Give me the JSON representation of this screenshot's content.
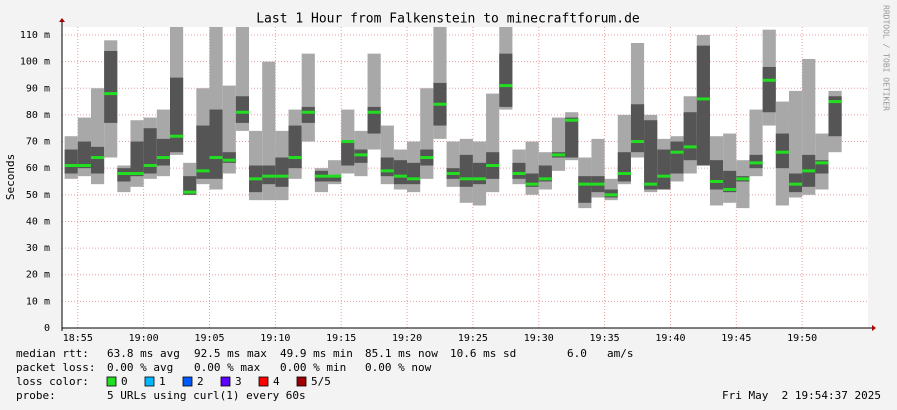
{
  "chart_data": {
    "type": "smoke",
    "title": "Last 1 Hour from Falkenstein to minecraftforum.de",
    "y_label": "Seconds",
    "side_label": "RRDTOOL / TOBI OETIKER",
    "x": [
      1134,
      1135,
      1136,
      1137,
      1138,
      1139,
      1140,
      1141,
      1142,
      1143,
      1144,
      1145,
      1146,
      1147,
      1148,
      1149,
      1150,
      1151,
      1152,
      1153,
      1154,
      1155,
      1156,
      1157,
      1158,
      1159,
      1160,
      1161,
      1162,
      1163,
      1164,
      1165,
      1166,
      1167,
      1168,
      1169,
      1170,
      1171,
      1172,
      1173,
      1174,
      1175,
      1176,
      1177,
      1178,
      1179,
      1180,
      1181,
      1182,
      1183,
      1184,
      1185,
      1186,
      1187,
      1188,
      1189,
      1190,
      1191,
      1192
    ],
    "median": [
      61,
      61,
      64,
      88,
      58,
      58,
      61,
      64,
      72,
      51,
      59,
      64,
      63,
      81,
      56,
      57,
      57,
      64,
      81,
      57,
      57,
      70,
      65,
      81,
      59,
      57,
      56,
      64,
      84,
      58,
      56,
      56,
      61,
      91,
      58,
      54,
      56,
      65,
      78,
      54,
      54,
      50,
      58,
      70,
      54,
      57,
      66,
      68,
      86,
      55,
      52,
      56,
      62,
      93,
      66,
      54,
      59,
      62,
      85
    ],
    "min": [
      56,
      57,
      54,
      64,
      51,
      53,
      56,
      57,
      65,
      50,
      54,
      52,
      58,
      74,
      48,
      48,
      48,
      56,
      70,
      51,
      54,
      58,
      57,
      67,
      54,
      52,
      51,
      56,
      71,
      53,
      47,
      46,
      51,
      82,
      54,
      50,
      52,
      59,
      63,
      45,
      49,
      48,
      54,
      64,
      51,
      54,
      55,
      58,
      72,
      46,
      47,
      45,
      57,
      76,
      46,
      49,
      50,
      52,
      66
    ],
    "max": [
      72,
      79,
      90,
      108,
      61,
      78,
      79,
      82,
      113,
      62,
      90,
      113,
      91,
      113,
      74,
      100,
      74,
      82,
      103,
      60,
      63,
      82,
      74,
      103,
      76,
      67,
      70,
      90,
      113,
      70,
      71,
      70,
      88,
      113,
      67,
      70,
      66,
      79,
      81,
      64,
      71,
      56,
      80,
      107,
      80,
      71,
      72,
      87,
      110,
      72,
      73,
      63,
      82,
      112,
      85,
      89,
      101,
      73,
      89
    ],
    "q_low": [
      58,
      60,
      58,
      77,
      55,
      57,
      58,
      61,
      66,
      50,
      56,
      56,
      62,
      77,
      51,
      54,
      53,
      60,
      77,
      55,
      55,
      61,
      62,
      73,
      57,
      54,
      54,
      61,
      76,
      56,
      53,
      54,
      56,
      83,
      56,
      53,
      55,
      64,
      64,
      47,
      51,
      49,
      55,
      66,
      52,
      52,
      58,
      63,
      61,
      52,
      51,
      55,
      60,
      81,
      60,
      51,
      53,
      58,
      72
    ],
    "q_high": [
      67,
      70,
      68,
      104,
      60,
      70,
      75,
      71,
      94,
      57,
      76,
      82,
      66,
      87,
      61,
      61,
      64,
      76,
      83,
      59,
      57,
      70,
      67,
      83,
      64,
      63,
      62,
      67,
      92,
      60,
      65,
      62,
      66,
      103,
      62,
      58,
      61,
      66,
      79,
      57,
      57,
      52,
      66,
      84,
      78,
      67,
      70,
      81,
      106,
      63,
      59,
      57,
      65,
      98,
      73,
      58,
      65,
      63,
      87
    ],
    "median_color": "#22dd22",
    "smoke_color": "#a8a8a8",
    "band_color": "#555555",
    "grid_color": "#e8a0a0",
    "xlim": [
      1133.8,
      1195
    ],
    "ylim": [
      0,
      113
    ],
    "xticks": [
      {
        "value": 1135,
        "label": "18:55"
      },
      {
        "value": 1140,
        "label": "19:00"
      },
      {
        "value": 1145,
        "label": "19:05"
      },
      {
        "value": 1150,
        "label": "19:10"
      },
      {
        "value": 1155,
        "label": "19:15"
      },
      {
        "value": 1160,
        "label": "19:20"
      },
      {
        "value": 1165,
        "label": "19:25"
      },
      {
        "value": 1170,
        "label": "19:30"
      },
      {
        "value": 1175,
        "label": "19:35"
      },
      {
        "value": 1180,
        "label": "19:40"
      },
      {
        "value": 1185,
        "label": "19:45"
      },
      {
        "value": 1190,
        "label": "19:50"
      }
    ],
    "yticks": [
      0,
      {
        "value": 10,
        "label": "10 m"
      },
      {
        "value": 20,
        "label": "20 m"
      },
      {
        "value": 30,
        "label": "30 m"
      },
      {
        "value": 40,
        "label": "40 m"
      },
      {
        "value": 50,
        "label": "50 m"
      },
      {
        "value": 60,
        "label": "60 m"
      },
      {
        "value": 70,
        "label": "70 m"
      },
      {
        "value": 80,
        "label": "80 m"
      },
      {
        "value": 90,
        "label": "90 m"
      },
      {
        "value": 100,
        "label": "100 m"
      },
      {
        "value": 110,
        "label": "110 m"
      }
    ],
    "stats": [
      [
        "median rtt:",
        "63.8 ms avg",
        "92.5 ms max",
        "49.9 ms min",
        "85.1 ms now",
        "10.6 ms sd",
        "6.0",
        "am/s"
      ],
      [
        "packet loss:",
        "0.00 % avg",
        "0.00 % max",
        "0.00 % min",
        "0.00 % now"
      ]
    ],
    "loss_legend_title": "loss color:",
    "loss_legend": [
      {
        "label": "0",
        "color": "#22dd22"
      },
      {
        "label": "1",
        "color": "#00b8ff"
      },
      {
        "label": "2",
        "color": "#0059ff"
      },
      {
        "label": "3",
        "color": "#5e00ff"
      },
      {
        "label": "4",
        "color": "#ff0000"
      },
      {
        "label": "5/5",
        "color": "#a10000"
      }
    ],
    "probe_title": "probe:",
    "probe": "5 URLs using curl(1) every 60s",
    "timestamp": "Fri May  2 19:54:37 2025"
  }
}
